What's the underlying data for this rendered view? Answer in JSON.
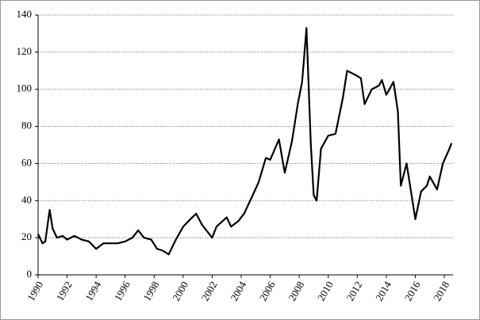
{
  "chart_data": {
    "type": "line",
    "x": [
      1990.0,
      1990.3,
      1990.5,
      1990.8,
      1991.0,
      1991.3,
      1991.7,
      1992.0,
      1992.5,
      1993.0,
      1993.5,
      1994.0,
      1994.5,
      1995.0,
      1995.5,
      1996.0,
      1996.5,
      1996.9,
      1997.3,
      1997.8,
      1998.2,
      1998.6,
      1999.0,
      1999.5,
      2000.0,
      2000.5,
      2000.9,
      2001.3,
      2001.8,
      2002.0,
      2002.3,
      2003.0,
      2003.3,
      2003.8,
      2004.2,
      2004.8,
      2005.2,
      2005.7,
      2006.0,
      2006.6,
      2007.0,
      2007.5,
      2007.9,
      2008.2,
      2008.5,
      2008.8,
      2009.0,
      2009.2,
      2009.5,
      2010.0,
      2010.5,
      2011.0,
      2011.3,
      2011.8,
      2012.25,
      2012.5,
      2013.0,
      2013.5,
      2013.7,
      2014.0,
      2014.5,
      2014.8,
      2015.0,
      2015.4,
      2015.7,
      2016.0,
      2016.4,
      2016.8,
      2017.0,
      2017.5,
      2017.9,
      2018.3,
      2018.5
    ],
    "series": [
      {
        "color": "#000000",
        "values": [
          22,
          17,
          18,
          35,
          25,
          20,
          21,
          19,
          21,
          19,
          18,
          14,
          17,
          17,
          17,
          18,
          20,
          24,
          20,
          19,
          14,
          13,
          11,
          19,
          26,
          30,
          33,
          27,
          22,
          20,
          26,
          31,
          26,
          29,
          33,
          43,
          50,
          63,
          62,
          73,
          55,
          72,
          92,
          104,
          133,
          70,
          43,
          40,
          68,
          75,
          76,
          95,
          110,
          108,
          106,
          92,
          100,
          102,
          105,
          97,
          104,
          88,
          48,
          60,
          45,
          30,
          45,
          48,
          53,
          46,
          60,
          67,
          71
        ]
      }
    ],
    "xlim": [
      1990,
      2018.6
    ],
    "xticks": [
      1990,
      1992,
      1994,
      1996,
      1998,
      2000,
      2002,
      2004,
      2006,
      2008,
      2010,
      2012,
      2014,
      2016,
      2018
    ],
    "ylim": [
      0,
      140
    ],
    "yticks": [
      0,
      20,
      40,
      60,
      80,
      100,
      120,
      140
    ],
    "grid": true
  }
}
